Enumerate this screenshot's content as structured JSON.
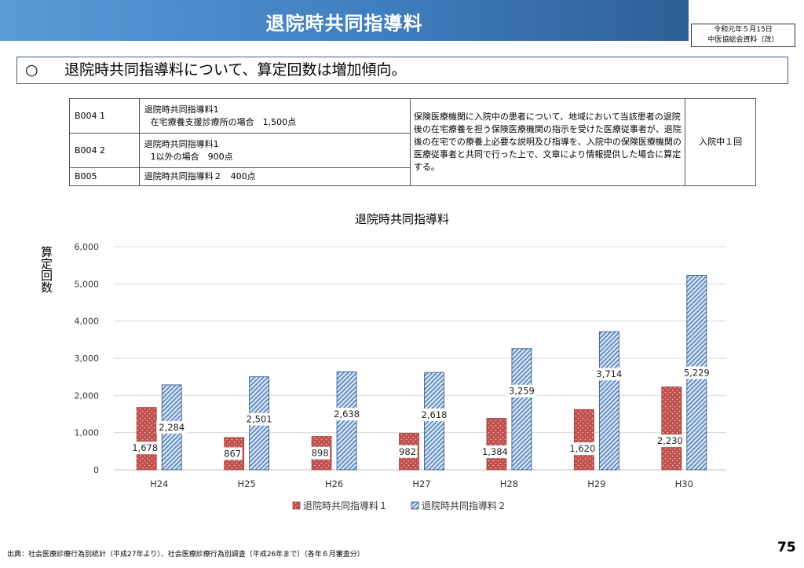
{
  "header": {
    "title": "退院時共同指導料",
    "meeting_line1": "令和元年５月15日",
    "meeting_line2": "中医協総会資料（改）"
  },
  "summary": {
    "bullet": "○",
    "text": "退院時共同指導料について、算定回数は増加傾向。"
  },
  "table": {
    "rows": [
      {
        "code": "B004 1",
        "name_l1": "退院時共同指導料1",
        "name_l2": "在宅療養支援診療所の場合　1,500点"
      },
      {
        "code": "B004 2",
        "name_l1": "退院時共同指導料1",
        "name_l2": "1以外の場合　900点"
      },
      {
        "code": "B005",
        "name_l1": "退院時共同指導料２　400点",
        "name_l2": ""
      }
    ],
    "description": "保険医療機関に入院中の患者について、地域において当該患者の退院後の在宅療養を担う保険医療機関の指示を受けた医療従事者が、退院後の在宅での療養上必要な説明及び指導を、入院中の保険医療機関の医療従事者と共同で行った上で、文章により情報提供した場合に算定する。",
    "frequency": "入院中１回"
  },
  "chart_data": {
    "type": "bar",
    "title": "退院時共同指導料",
    "ylabel": "算定回数",
    "xlabel": "",
    "categories": [
      "H24",
      "H25",
      "H26",
      "H27",
      "H28",
      "H29",
      "H30"
    ],
    "ylim": [
      0,
      6000
    ],
    "yticks": [
      "0",
      "1,000",
      "2,000",
      "3,000",
      "4,000",
      "5,000",
      "6,000"
    ],
    "grid": true,
    "legend_position": "bottom",
    "series": [
      {
        "name": "退院時共同指導料１",
        "values": [
          1678,
          867,
          898,
          982,
          1384,
          1620,
          2230
        ],
        "labels": [
          "1,678",
          "867",
          "898",
          "982",
          "1,384",
          "1,620",
          "2,230"
        ],
        "color": "#c0504d",
        "pattern": "dots"
      },
      {
        "name": "退院時共同指導料２",
        "values": [
          2284,
          2501,
          2638,
          2618,
          3259,
          3714,
          5229
        ],
        "labels": [
          "2,284",
          "2,501",
          "2,638",
          "2,618",
          "3,259",
          "3,714",
          "5,229"
        ],
        "color": "#4f81bd",
        "pattern": "diagonal-stripes"
      }
    ]
  },
  "footer": {
    "source": "出典：社会医療診療行為別統計（平成27年より）、社会医療診療行為別調査（平成26年まで）（各年６月審査分）",
    "page_number": "75"
  }
}
